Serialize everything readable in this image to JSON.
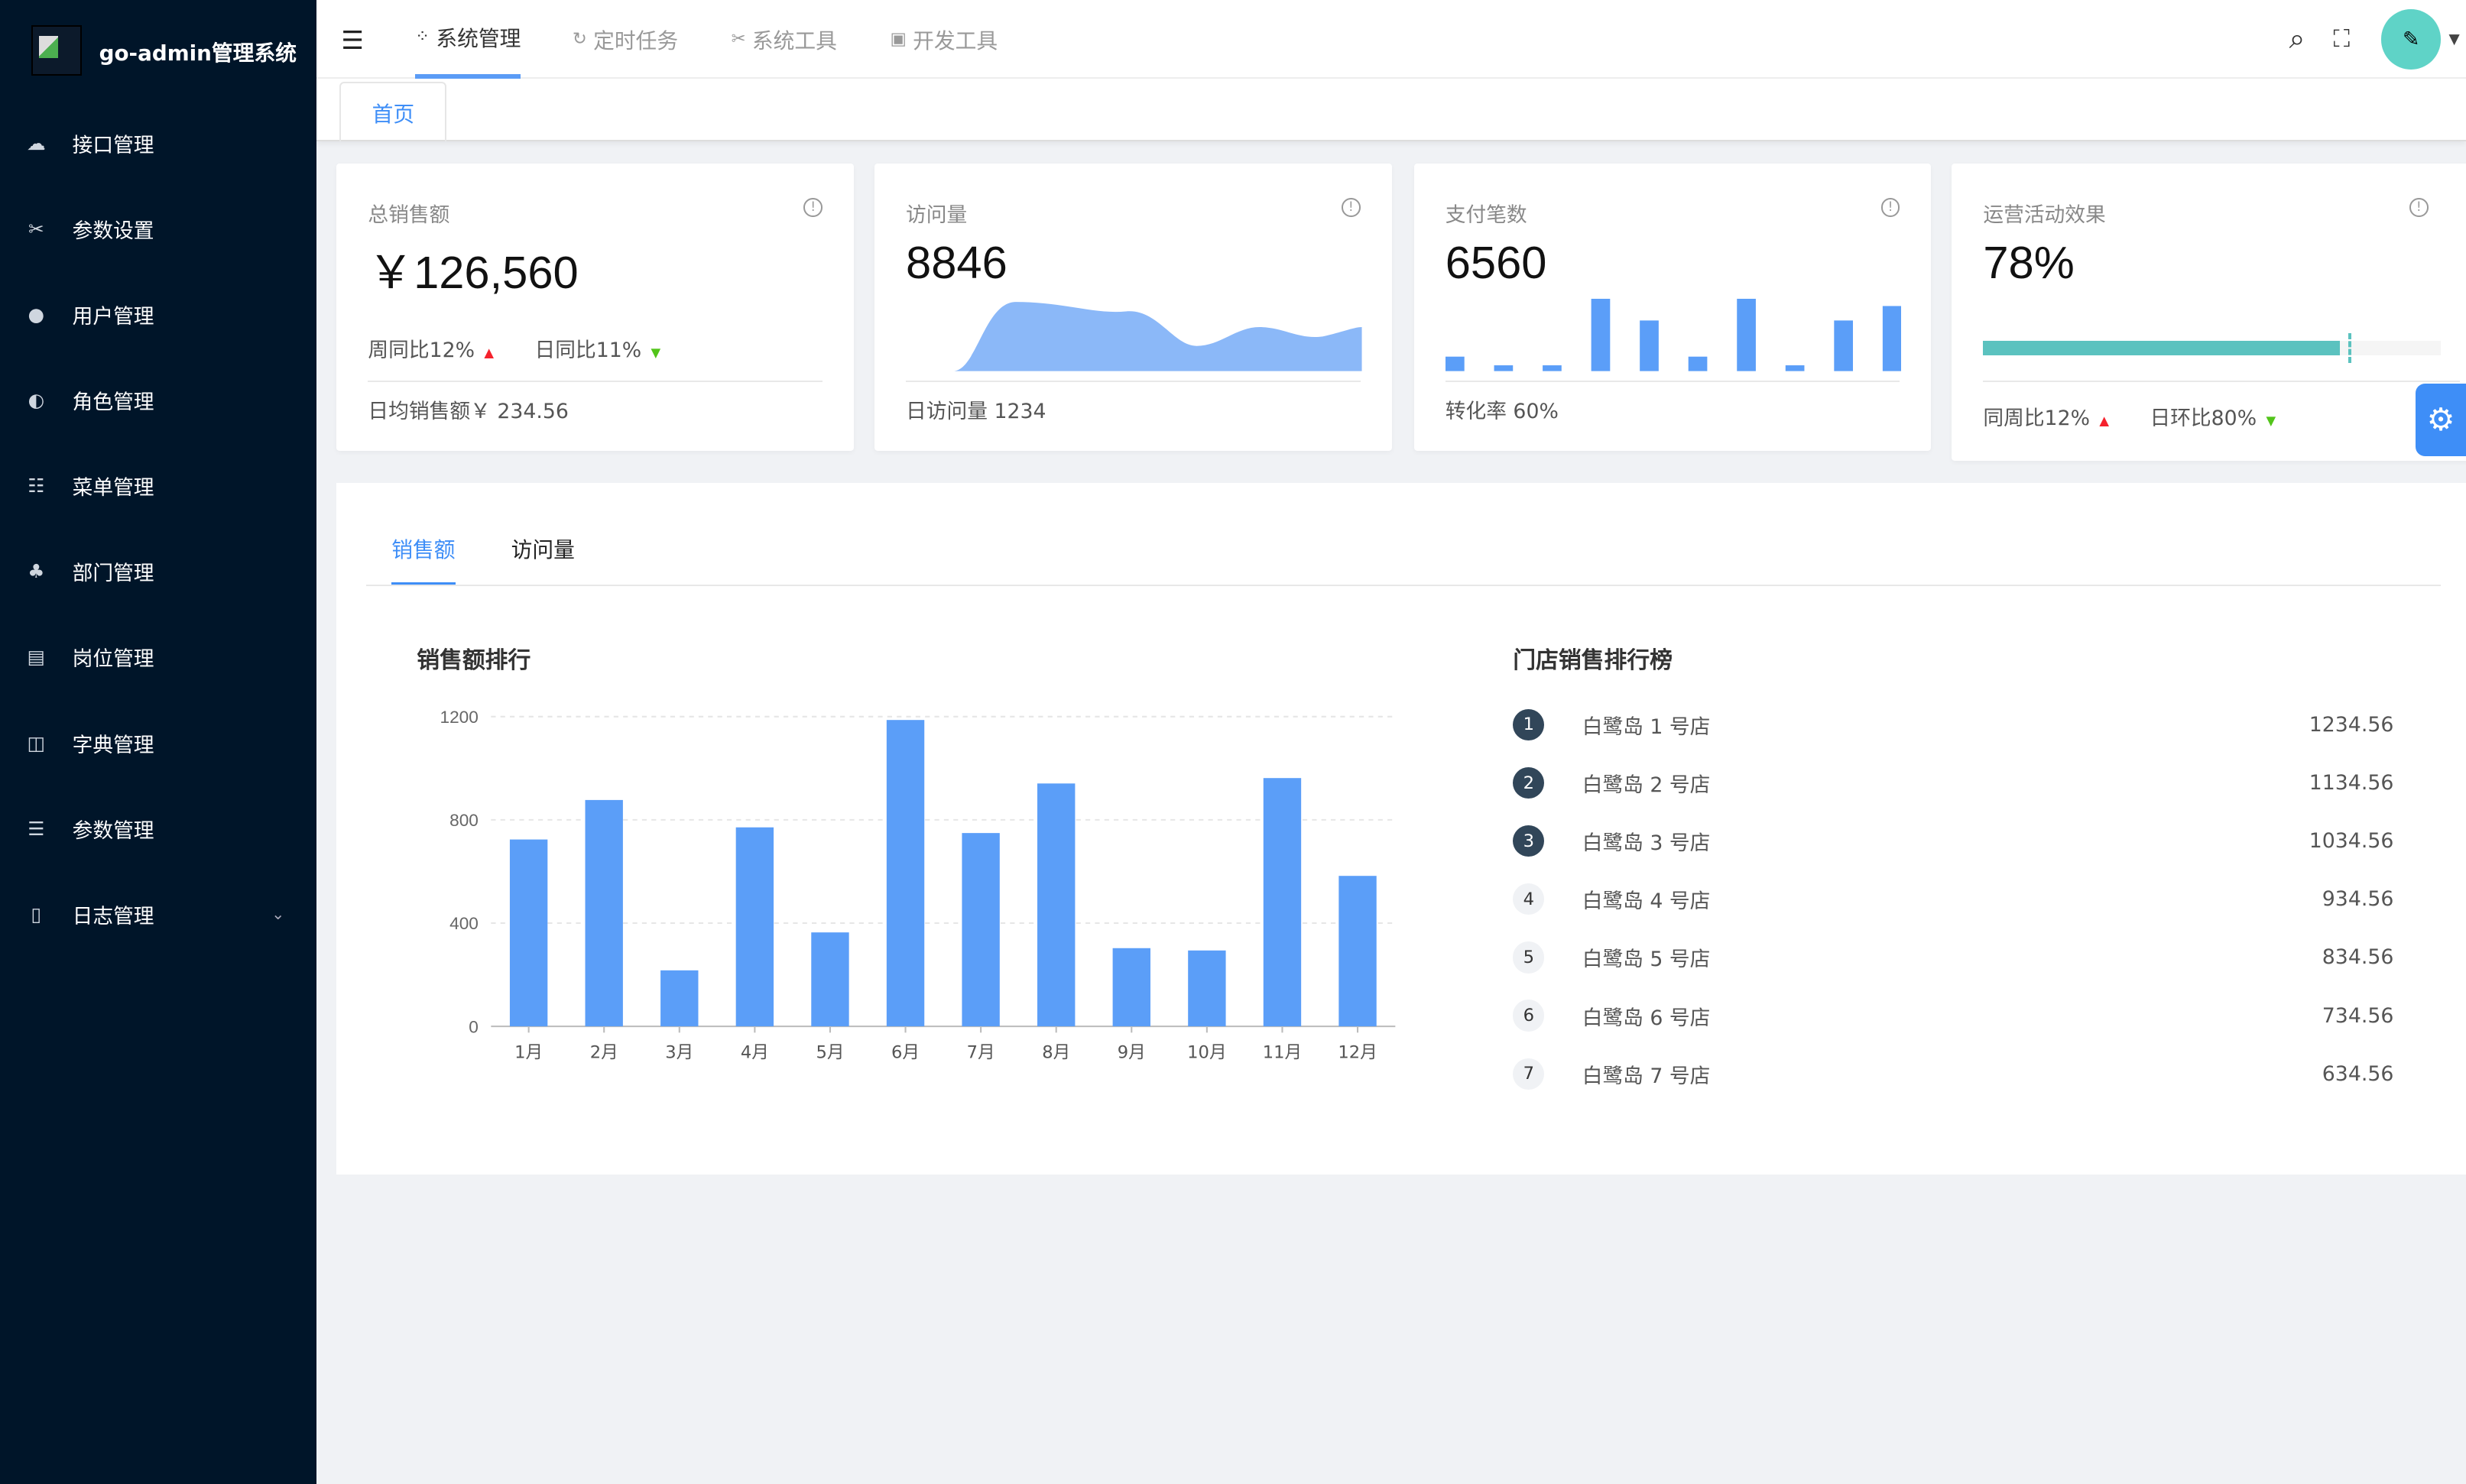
{
  "app": {
    "title": "go-admin管理系统"
  },
  "sidebar": {
    "items": [
      {
        "label": "接口管理",
        "icon": "cloud-api-icon"
      },
      {
        "label": "参数设置",
        "icon": "tools-icon"
      },
      {
        "label": "用户管理",
        "icon": "user-icon"
      },
      {
        "label": "角色管理",
        "icon": "users-icon"
      },
      {
        "label": "菜单管理",
        "icon": "tree-table-icon"
      },
      {
        "label": "部门管理",
        "icon": "org-chart-icon"
      },
      {
        "label": "岗位管理",
        "icon": "id-card-icon"
      },
      {
        "label": "字典管理",
        "icon": "book-icon"
      },
      {
        "label": "参数管理",
        "icon": "sliders-icon"
      },
      {
        "label": "日志管理",
        "icon": "log-icon",
        "expandable": true
      }
    ]
  },
  "topnav": [
    {
      "label": "系统管理",
      "icon": "apps-icon",
      "active": true
    },
    {
      "label": "定时任务",
      "icon": "clock-icon"
    },
    {
      "label": "系统工具",
      "icon": "tools-icon"
    },
    {
      "label": "开发工具",
      "icon": "code-icon"
    }
  ],
  "tags": [
    {
      "label": "首页",
      "active": true
    }
  ],
  "cards": [
    {
      "title": "总销售额",
      "value": "￥126,560",
      "week": "周同比12%",
      "day": "日同比11%",
      "footer": "日均销售额￥ 234.56"
    },
    {
      "title": "访问量",
      "value": "8846",
      "footer": "日访问量 1234"
    },
    {
      "title": "支付笔数",
      "value": "6560",
      "footer": "转化率 60%",
      "bars": [
        1,
        0.4,
        0.4,
        5,
        3.5,
        1,
        5,
        0.4,
        3.5,
        4.5
      ]
    },
    {
      "title": "运营活动效果",
      "value": "78%",
      "progress": 78,
      "week": "同周比12%",
      "day": "日环比80%"
    }
  ],
  "panel": {
    "tabs": [
      {
        "label": "销售额",
        "active": true
      },
      {
        "label": "访问量"
      }
    ],
    "ranking_title": "门店销售排行榜",
    "ranking": [
      {
        "rank": "1",
        "name": "白鹭岛 1 号店",
        "value": "1234.56"
      },
      {
        "rank": "2",
        "name": "白鹭岛 2 号店",
        "value": "1134.56"
      },
      {
        "rank": "3",
        "name": "白鹭岛 3 号店",
        "value": "1034.56"
      },
      {
        "rank": "4",
        "name": "白鹭岛 4 号店",
        "value": "934.56"
      },
      {
        "rank": "5",
        "name": "白鹭岛 5 号店",
        "value": "834.56"
      },
      {
        "rank": "6",
        "name": "白鹭岛 6 号店",
        "value": "734.56"
      },
      {
        "rank": "7",
        "name": "白鹭岛 7 号店",
        "value": "634.56"
      }
    ]
  },
  "colors": {
    "sidebar": "#001529",
    "accent": "#3e8ef7",
    "bar": "#5b9ef8",
    "progress": "#5bc2bf",
    "up": "#f5222d",
    "down": "#52c41a"
  },
  "chart_data": {
    "type": "bar",
    "title": "销售额排行",
    "categories": [
      "1月",
      "2月",
      "3月",
      "4月",
      "5月",
      "6月",
      "7月",
      "8月",
      "9月",
      "10月",
      "11月",
      "12月"
    ],
    "values": [
      724,
      877,
      217,
      771,
      364,
      1187,
      749,
      941,
      303,
      294,
      962,
      583
    ],
    "yticks": [
      "0",
      "400",
      "800",
      "1200"
    ],
    "ylim": [
      0,
      1200
    ],
    "grid": true,
    "xlabel": "",
    "ylabel": ""
  }
}
